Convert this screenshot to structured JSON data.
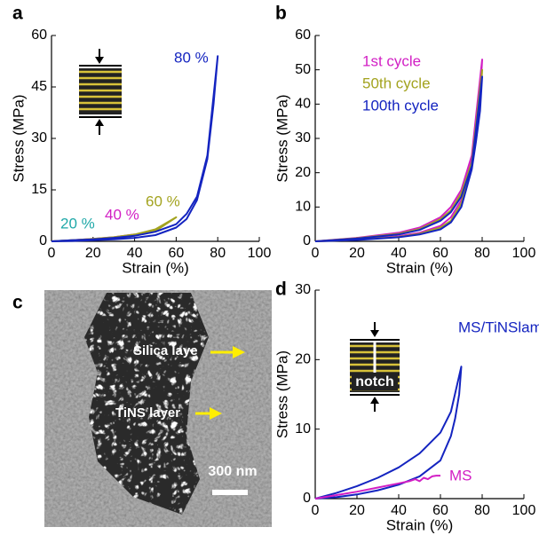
{
  "chart_data": [
    {
      "type": "line",
      "label": "a",
      "xlabel": "Strain (%)",
      "ylabel": "Stress (MPa)",
      "xlim": [
        0,
        100
      ],
      "xticks": [
        0,
        20,
        40,
        60,
        80,
        100
      ],
      "ylim": [
        0,
        60
      ],
      "yticks": [
        0,
        15,
        30,
        45,
        60
      ],
      "series": [
        {
          "name": "20 %",
          "color": "#1fa8a8",
          "x": [
            0,
            5,
            10,
            15,
            20,
            15,
            10,
            5,
            0
          ],
          "values": [
            0,
            0.2,
            0.3,
            0.4,
            0.6,
            0.4,
            0.3,
            0.2,
            0
          ]
        },
        {
          "name": "40 %",
          "color": "#d21fc4",
          "x": [
            0,
            10,
            20,
            30,
            40,
            30,
            20,
            10,
            0
          ],
          "values": [
            0,
            0.3,
            0.7,
            1.2,
            2,
            1,
            0.6,
            0.3,
            0
          ]
        },
        {
          "name": "60 %",
          "color": "#a3a31f",
          "x": [
            0,
            10,
            20,
            30,
            40,
            50,
            60,
            50,
            40,
            30,
            20,
            10,
            0
          ],
          "values": [
            0,
            0.3,
            0.7,
            1.2,
            2,
            3.5,
            7,
            3,
            1.6,
            0.9,
            0.5,
            0.2,
            0
          ]
        },
        {
          "name": "80 %",
          "color": "#1424c0",
          "x": [
            0,
            10,
            20,
            30,
            40,
            50,
            60,
            65,
            70,
            75,
            80,
            78,
            75,
            70,
            65,
            60,
            50,
            40,
            30,
            20,
            10,
            0
          ],
          "values": [
            0,
            0.3,
            0.6,
            1,
            1.6,
            2.8,
            5,
            8,
            13,
            25,
            54,
            40,
            24,
            12,
            6.5,
            4,
            1.8,
            1,
            0.6,
            0.3,
            0.1,
            0
          ]
        }
      ]
    },
    {
      "type": "line",
      "label": "b",
      "xlabel": "Strain (%)",
      "ylabel": "Stress (MPa)",
      "xlim": [
        0,
        100
      ],
      "xticks": [
        0,
        20,
        40,
        60,
        80,
        100
      ],
      "ylim": [
        0,
        60
      ],
      "yticks": [
        0,
        10,
        20,
        30,
        40,
        50,
        60
      ],
      "series": [
        {
          "name": "1st cycle",
          "color": "#d21fc4",
          "x": [
            0,
            20,
            40,
            50,
            60,
            65,
            70,
            75,
            80,
            79,
            77,
            75,
            70,
            65,
            60,
            50,
            40,
            20,
            0
          ],
          "values": [
            0,
            1,
            2.5,
            4,
            7,
            10,
            15,
            25,
            53,
            42,
            32,
            24,
            12,
            7,
            4.5,
            2.5,
            1.5,
            0.5,
            0
          ]
        },
        {
          "name": "50th cycle",
          "color": "#a3a31f",
          "x": [
            0,
            20,
            40,
            50,
            60,
            65,
            70,
            75,
            80,
            79,
            77,
            75,
            70,
            65,
            60,
            50,
            40,
            20,
            0
          ],
          "values": [
            0,
            0.9,
            2.2,
            3.6,
            6.5,
            9,
            14,
            23,
            50,
            40,
            30,
            22,
            11,
            6,
            4,
            2.2,
            1.3,
            0.45,
            0
          ]
        },
        {
          "name": "100th cycle",
          "color": "#1424c0",
          "x": [
            0,
            20,
            40,
            50,
            60,
            65,
            70,
            75,
            80,
            79,
            77,
            75,
            70,
            65,
            60,
            50,
            40,
            20,
            0
          ],
          "values": [
            0,
            0.8,
            2,
            3.3,
            6,
            8.5,
            13,
            22,
            48,
            38,
            29,
            21,
            10,
            5.5,
            3.5,
            2,
            1.2,
            0.4,
            0
          ]
        }
      ]
    },
    {
      "type": "line",
      "label": "d",
      "xlabel": "Strain (%)",
      "ylabel": "Stress (MPa)",
      "inset_label": "notch",
      "xlim": [
        0,
        100
      ],
      "xticks": [
        0,
        20,
        40,
        60,
        80,
        100
      ],
      "ylim": [
        0,
        30
      ],
      "yticks": [
        0,
        10,
        20,
        30
      ],
      "series": [
        {
          "name": "MS/TiNSlam",
          "color": "#1424c0",
          "x": [
            0,
            10,
            20,
            30,
            40,
            50,
            60,
            65,
            70,
            69,
            67,
            65,
            60,
            50,
            40,
            30,
            20,
            10,
            0
          ],
          "values": [
            0,
            0.8,
            1.8,
            3,
            4.5,
            6.5,
            9.5,
            12.5,
            19,
            15,
            11.5,
            9,
            5.5,
            3.2,
            2,
            1.2,
            0.6,
            0.2,
            0
          ]
        },
        {
          "name": "MS",
          "color": "#d21fc4",
          "x": [
            0,
            10,
            20,
            30,
            40,
            45,
            48,
            50,
            52,
            54,
            56,
            58,
            60
          ],
          "values": [
            0,
            0.5,
            1,
            1.6,
            2.2,
            2.5,
            2.8,
            2.5,
            3,
            2.8,
            3.2,
            3.3,
            3.3
          ]
        }
      ]
    }
  ],
  "image_panel": {
    "label": "c",
    "annotations": [
      "Silica laye",
      "TiNS layer"
    ],
    "scale_bar": "300 nm"
  }
}
